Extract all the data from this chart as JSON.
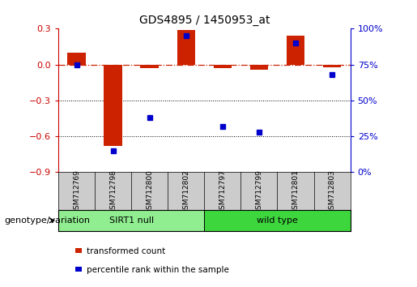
{
  "title": "GDS4895 / 1450953_at",
  "samples": [
    "GSM712769",
    "GSM712798",
    "GSM712800",
    "GSM712802",
    "GSM712797",
    "GSM712799",
    "GSM712801",
    "GSM712803"
  ],
  "red_values": [
    0.1,
    -0.68,
    -0.03,
    0.29,
    -0.03,
    -0.04,
    0.24,
    -0.02
  ],
  "blue_values": [
    75,
    15,
    38,
    95,
    32,
    28,
    90,
    68
  ],
  "groups": [
    {
      "label": "SIRT1 null",
      "start": 0,
      "end": 4,
      "color": "#90EE90"
    },
    {
      "label": "wild type",
      "start": 4,
      "end": 8,
      "color": "#3DD63D"
    }
  ],
  "ylim_left": [
    -0.9,
    0.3
  ],
  "ylim_right": [
    0,
    100
  ],
  "yticks_left": [
    -0.9,
    -0.6,
    -0.3,
    0.0,
    0.3
  ],
  "yticks_right": [
    0,
    25,
    50,
    75,
    100
  ],
  "left_axis_color": "#CC0000",
  "right_axis_color": "#0000CC",
  "dotted_lines": [
    -0.3,
    -0.6
  ],
  "bar_color": "#CC2200",
  "dot_color": "#0000CC",
  "legend_items": [
    {
      "label": "transformed count",
      "color": "#CC2200"
    },
    {
      "label": "percentile rank within the sample",
      "color": "#0000CC"
    }
  ],
  "group_label": "genotype/variation",
  "background_color": "#FFFFFF",
  "figsize": [
    5.15,
    3.54
  ],
  "dpi": 100
}
